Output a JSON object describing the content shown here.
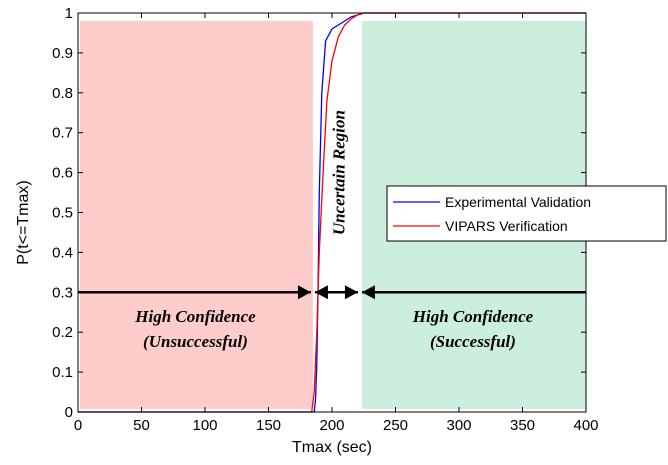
{
  "chart_data": {
    "type": "line",
    "xlabel": "Tmax (sec)",
    "ylabel": "P(t<=Tmax)",
    "xlim": [
      0,
      400
    ],
    "ylim": [
      0,
      1
    ],
    "x_ticks": [
      "0",
      "50",
      "100",
      "150",
      "200",
      "250",
      "300",
      "350",
      "400"
    ],
    "y_ticks": [
      "0",
      "0.1",
      "0.2",
      "0.3",
      "0.4",
      "0.5",
      "0.6",
      "0.7",
      "0.8",
      "0.9",
      "1"
    ],
    "grid": false,
    "legend_position": "right",
    "series": [
      {
        "name": "Experimental Validation",
        "color": "#0000ff",
        "x": [
          0,
          186,
          187,
          188,
          189,
          190,
          192,
          195,
          200,
          205,
          210,
          215,
          220,
          225,
          400
        ],
        "y": [
          0,
          0,
          0.03,
          0.12,
          0.3,
          0.55,
          0.8,
          0.93,
          0.96,
          0.97,
          0.98,
          0.99,
          0.995,
          1,
          1
        ]
      },
      {
        "name": "VIPARS Verification",
        "color": "#ff0000",
        "x": [
          0,
          184,
          186,
          188,
          190,
          193,
          196,
          200,
          205,
          210,
          215,
          220,
          225,
          400
        ],
        "y": [
          0,
          0,
          0.05,
          0.2,
          0.4,
          0.6,
          0.78,
          0.88,
          0.94,
          0.97,
          0.985,
          0.995,
          1,
          1
        ]
      }
    ],
    "regions": [
      {
        "x_range": [
          0,
          185
        ],
        "y_range": [
          0,
          0.98
        ],
        "color": "#ffcccc"
      },
      {
        "x_range": [
          222,
          400
        ],
        "y_range": [
          0,
          0.98
        ],
        "color": "#cceedd"
      }
    ],
    "annotations": {
      "left_region": [
        "High Confidence",
        "(Unsuccessful)"
      ],
      "right_region": [
        "High Confidence",
        "(Successful)"
      ],
      "middle_region": "Uncertain Region",
      "arrow_y": 0.3,
      "arrow_left_range": [
        0,
        185
      ],
      "arrow_mid_range": [
        185,
        222
      ],
      "arrow_right_range": [
        222,
        400
      ]
    }
  }
}
